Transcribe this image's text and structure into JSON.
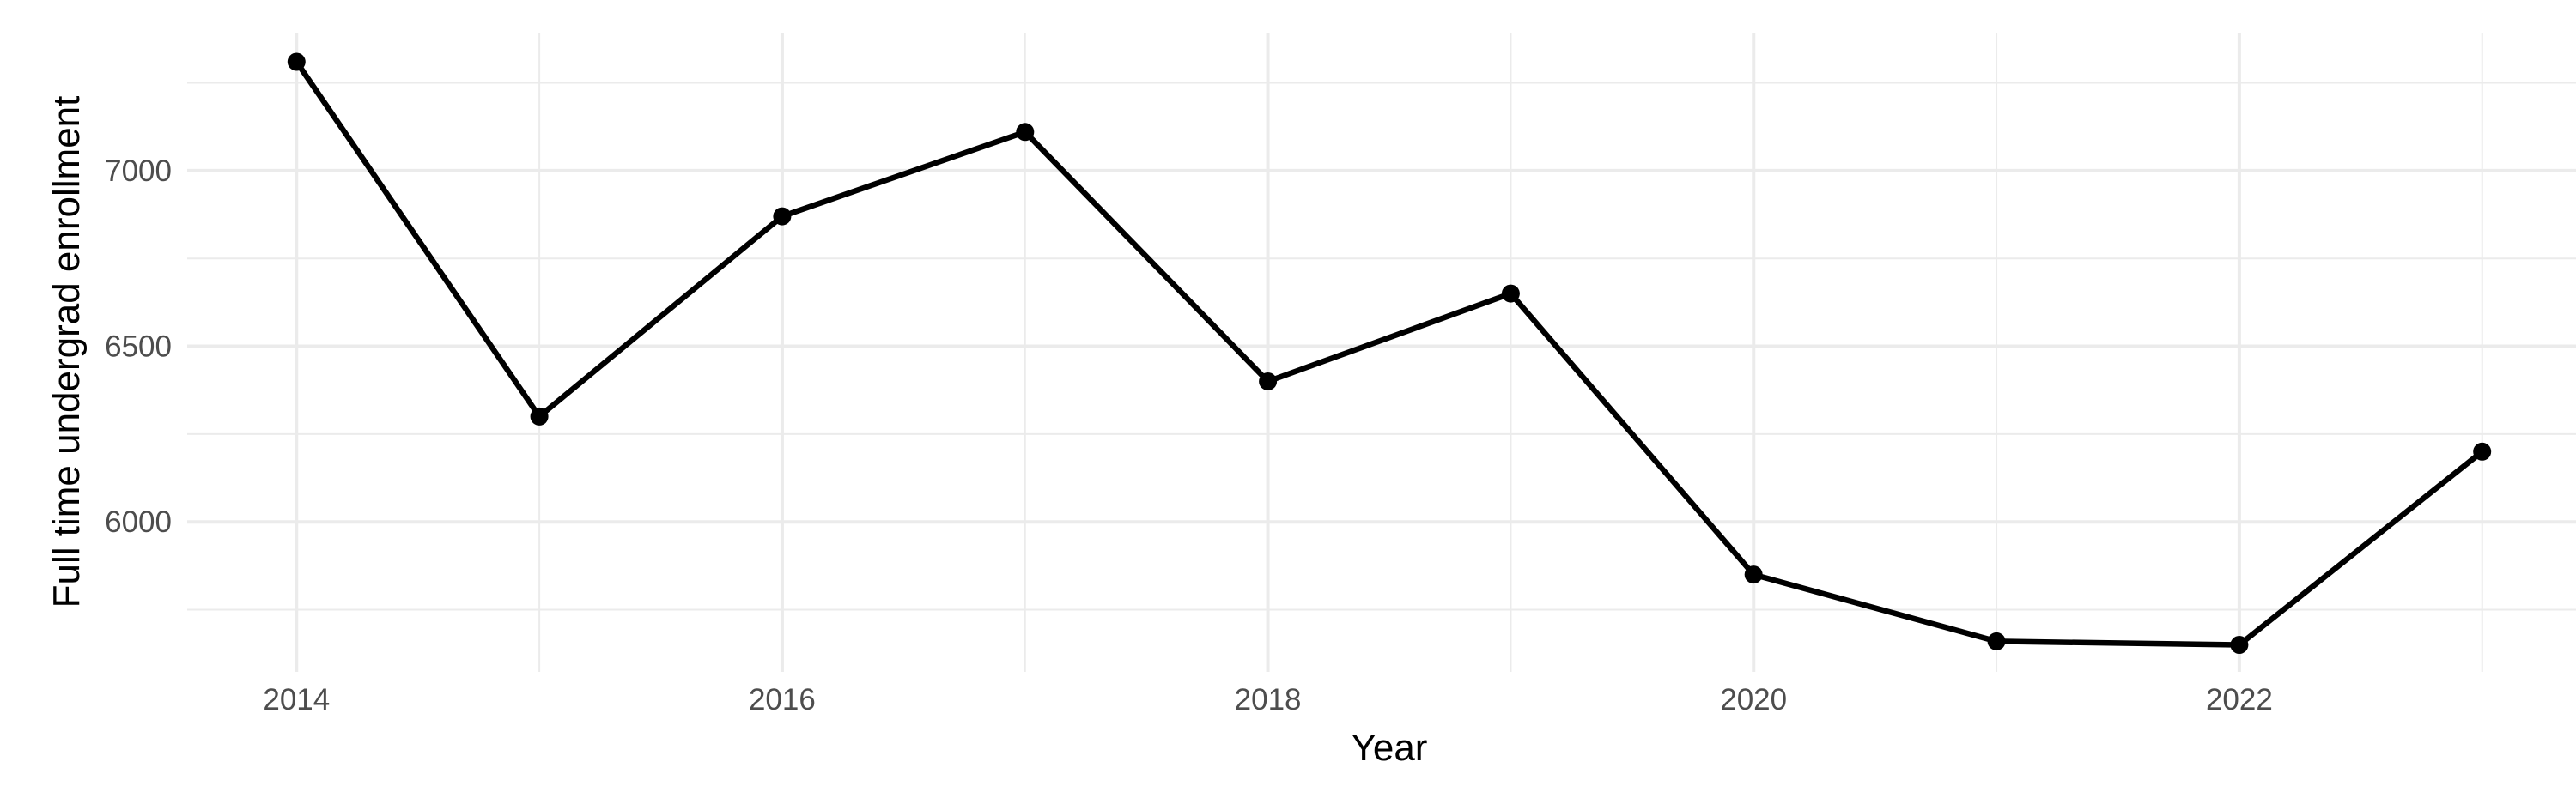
{
  "chart_data": {
    "type": "line",
    "title": "",
    "xlabel": "Year",
    "ylabel": "Full time undergrad enrollment",
    "x": [
      2014,
      2015,
      2016,
      2017,
      2018,
      2019,
      2020,
      2021,
      2022,
      2023
    ],
    "values": [
      7310,
      6300,
      6870,
      7110,
      6400,
      6650,
      5850,
      5660,
      5650,
      6200
    ],
    "series": [
      {
        "name": "Full time undergrad enrollment",
        "values": [
          7310,
          6300,
          6870,
          7110,
          6400,
          6650,
          5850,
          5660,
          5650,
          6200
        ]
      }
    ],
    "xlim": [
      2013.55,
      2023.45
    ],
    "ylim": [
      5573,
      7393
    ],
    "x_major_ticks": [
      2014,
      2016,
      2018,
      2020,
      2022
    ],
    "x_tick_labels": [
      "2014",
      "2016",
      "2018",
      "2020",
      "2022"
    ],
    "x_minor_ticks": [
      2015,
      2017,
      2019,
      2021,
      2023
    ],
    "y_major_ticks": [
      6000,
      6500,
      7000
    ],
    "y_tick_labels": [
      "6000",
      "6500",
      "7000"
    ],
    "y_minor_ticks": [
      5750,
      6250,
      6750,
      7250
    ],
    "grid": true,
    "legend_position": "none",
    "marker": "point",
    "colors": {
      "line": "#000000",
      "point": "#000000",
      "grid_major": "#EBEBEB",
      "grid_minor": "#EBEBEB",
      "tick_label": "#4D4D4D",
      "axis_title": "#000000",
      "background": "#FFFFFF"
    }
  }
}
